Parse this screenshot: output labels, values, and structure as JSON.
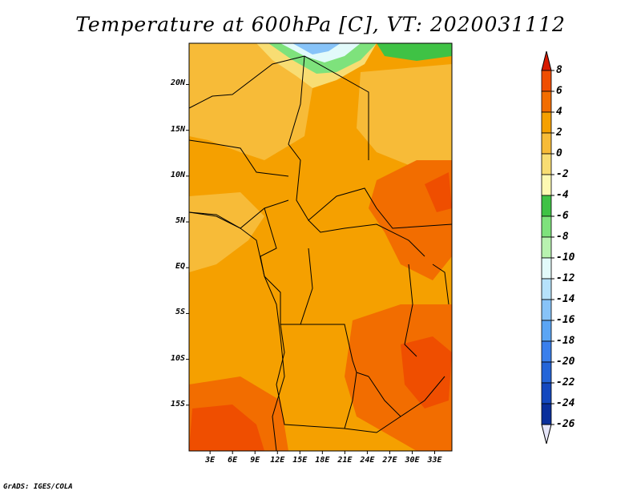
{
  "title": "Temperature at 600hPa [C], VT: 2020031112",
  "credit": "GrADS: IGES/COLA",
  "map": {
    "lat_labels": [
      "20N",
      "15N",
      "10N",
      "5N",
      "EQ",
      "5S",
      "10S",
      "15S"
    ],
    "lon_labels": [
      "3E",
      "6E",
      "9E",
      "12E",
      "15E",
      "18E",
      "21E",
      "24E",
      "27E",
      "30E",
      "33E"
    ],
    "lat_range": [
      -20.0,
      24.5
    ],
    "lon_range": [
      0.2,
      35.3
    ]
  },
  "colorbar": {
    "labels": [
      "8",
      "6",
      "4",
      "2",
      "0",
      "-2",
      "-4",
      "-6",
      "-8",
      "-10",
      "-12",
      "-14",
      "-16",
      "-18",
      "-20",
      "-22",
      "-24",
      "-26"
    ],
    "colors": [
      "#e22b00",
      "#ef4e00",
      "#f26d00",
      "#f5a000",
      "#f7bb38",
      "#f8dd73",
      "#fdf9b2",
      "#3fc245",
      "#7ee27c",
      "#b8f2b0",
      "#e2fafa",
      "#b6e2fb",
      "#87c3f8",
      "#5ba5f4",
      "#3a7fec",
      "#2465d8",
      "#1448bf",
      "#0a2f9c",
      "#000080"
    ],
    "top_arrow_color": "#d81a00",
    "bottom_arrow_color": "#e6e6fa"
  }
}
